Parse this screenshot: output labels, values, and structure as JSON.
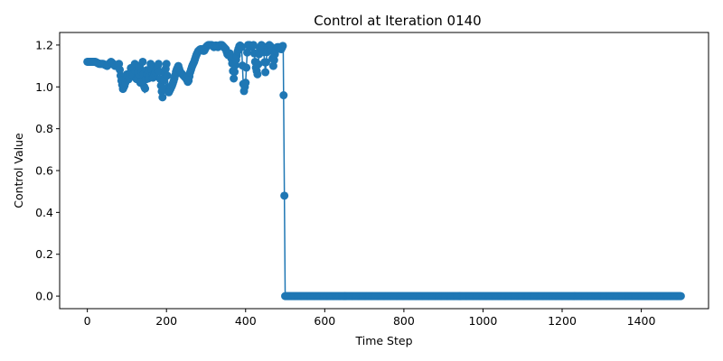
{
  "chart_data": {
    "type": "line",
    "title": "Control at Iteration 0140",
    "xlabel": "Time Step",
    "ylabel": "Control Value",
    "xlim": [
      -70,
      1570
    ],
    "ylim": [
      -0.06,
      1.26
    ],
    "xticks": [
      0,
      200,
      400,
      600,
      800,
      1000,
      1200,
      1400
    ],
    "yticks": [
      0.0,
      0.2,
      0.4,
      0.6,
      0.8,
      1.0,
      1.2
    ],
    "ytick_labels": [
      "0.0",
      "0.2",
      "0.4",
      "0.6",
      "0.8",
      "1.0",
      "1.2"
    ],
    "grid": false,
    "legend": "none",
    "marker": "circle",
    "color": "#1f77b4",
    "series": [
      {
        "x": [
          0,
          10,
          20,
          30,
          40,
          50,
          60,
          70,
          80,
          85,
          90,
          95,
          100,
          105,
          110,
          115,
          120,
          125,
          130,
          135,
          140,
          145,
          150,
          155,
          160,
          165,
          170,
          175,
          180,
          185,
          190,
          195,
          200,
          205,
          210,
          215,
          220,
          225,
          230,
          235,
          240,
          245,
          250,
          255,
          260,
          265,
          270,
          275,
          280,
          285,
          290,
          295,
          300,
          305,
          310,
          315,
          320,
          325,
          330,
          335,
          340,
          345,
          350,
          355,
          360,
          365,
          370,
          375,
          380,
          385,
          390,
          395,
          400,
          405,
          410,
          415,
          420,
          425,
          430,
          435,
          440,
          445,
          450,
          455,
          460,
          465,
          470,
          475,
          480,
          485,
          490,
          495,
          500,
          1500
        ],
        "y": [
          1.12,
          1.12,
          1.12,
          1.11,
          1.11,
          1.1,
          1.12,
          1.1,
          1.11,
          1.04,
          0.99,
          1.01,
          1.06,
          1.03,
          1.09,
          1.05,
          1.11,
          1.02,
          1.1,
          1.0,
          1.12,
          0.97,
          1.08,
          1.03,
          1.11,
          1.04,
          1.06,
          1.09,
          1.11,
          1.02,
          0.95,
          1.05,
          1.11,
          0.97,
          0.99,
          1.01,
          1.04,
          1.08,
          1.1,
          1.07,
          1.06,
          1.05,
          1.04,
          1.02,
          1.07,
          1.1,
          1.12,
          1.15,
          1.17,
          1.18,
          1.18,
          1.17,
          1.19,
          1.2,
          1.2,
          1.2,
          1.19,
          1.2,
          1.19,
          1.2,
          1.2,
          1.19,
          1.18,
          1.15,
          1.16,
          1.13,
          1.04,
          1.12,
          1.17,
          1.2,
          1.19,
          0.97,
          1.02,
          1.2,
          1.2,
          1.19,
          1.2,
          1.1,
          1.06,
          1.18,
          1.2,
          1.19,
          1.07,
          1.19,
          1.2,
          1.19,
          1.1,
          1.17,
          1.19,
          1.19,
          1.18,
          1.2,
          0.0,
          0.0
        ]
      }
    ]
  }
}
